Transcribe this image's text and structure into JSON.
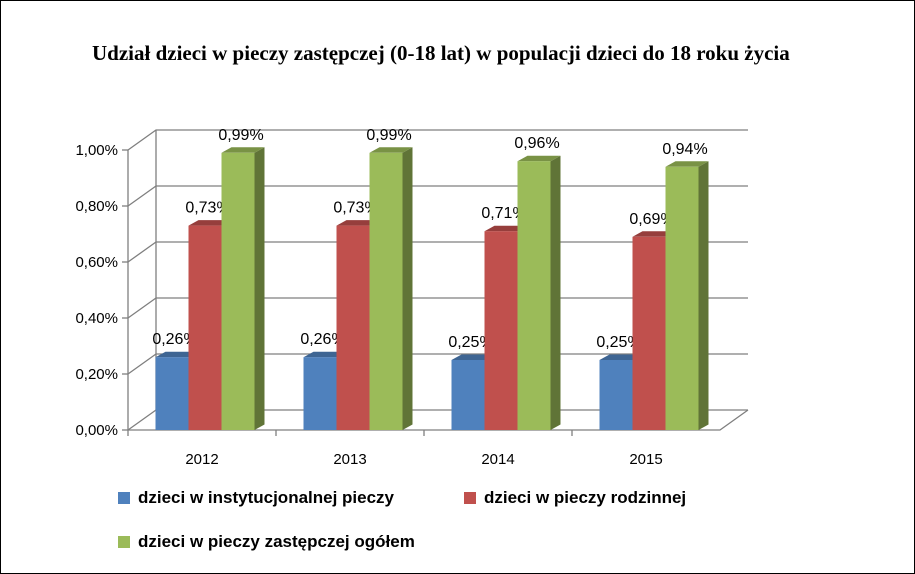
{
  "chart_data": {
    "type": "bar",
    "title": "Udział dzieci w pieczy zastępczej  (0-18 lat)  w populacji dzieci do 18 roku życia",
    "categories": [
      "2012",
      "2013",
      "2014",
      "2015"
    ],
    "series": [
      {
        "name": "dzieci w instytucjonalnej pieczy",
        "values": [
          0.26,
          0.26,
          0.25,
          0.25
        ],
        "labels": [
          "0,26%",
          "0,26%",
          "0,25%",
          "0,25%"
        ],
        "color": "#4F81BD"
      },
      {
        "name": "dzieci w pieczy rodzinnej",
        "values": [
          0.73,
          0.73,
          0.71,
          0.69
        ],
        "labels": [
          "0,73%",
          "0,73%",
          "0,71%",
          "0,69%"
        ],
        "color": "#C0504D"
      },
      {
        "name": "dzieci w pieczy zastępczej ogółem",
        "values": [
          0.99,
          0.99,
          0.96,
          0.94
        ],
        "labels": [
          "0,99%",
          "0,99%",
          "0,96%",
          "0,94%"
        ],
        "color": "#9BBB59"
      }
    ],
    "ylim": [
      0,
      1.0
    ],
    "yticks": [
      "0,00%",
      "0,20%",
      "0,40%",
      "0,60%",
      "0,80%",
      "1,00%"
    ],
    "grid": true,
    "legend_position": "bottom",
    "style": "3d-clustered-column"
  }
}
